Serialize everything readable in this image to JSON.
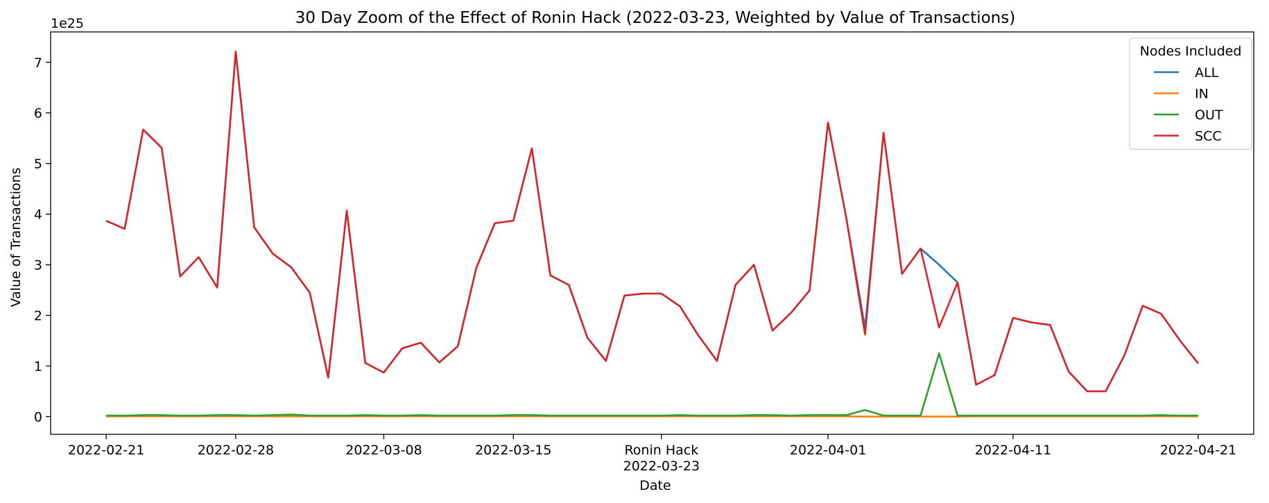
{
  "chart_data": {
    "type": "line",
    "title": "30 Day Zoom of the Effect of Ronin Hack (2022-03-23, Weighted by Value of Transactions)",
    "xlabel": "Date",
    "ylabel": "Value of Transactions",
    "y_offset_label": "1e25",
    "y_scale_exponent": 25,
    "xlim": [
      "2022-02-18",
      "2022-04-24"
    ],
    "ylim": [
      -0.35,
      7.6
    ],
    "y_ticks": [
      0,
      1,
      2,
      3,
      4,
      5,
      6,
      7
    ],
    "y_tick_labels": [
      "0",
      "1",
      "2",
      "3",
      "4",
      "5",
      "6",
      "7"
    ],
    "x_ticks": [
      {
        "date": "2022-02-21",
        "label": "2022-02-21"
      },
      {
        "date": "2022-02-28",
        "label": "2022-02-28"
      },
      {
        "date": "2022-03-08",
        "label": "2022-03-08"
      },
      {
        "date": "2022-03-15",
        "label": "2022-03-15"
      },
      {
        "date": "2022-03-23",
        "label": "2022-03-23",
        "annotation": "Ronin Hack"
      },
      {
        "date": "2022-04-01",
        "label": "2022-04-01"
      },
      {
        "date": "2022-04-11",
        "label": "2022-04-11"
      },
      {
        "date": "2022-04-21",
        "label": "2022-04-21"
      }
    ],
    "grid": false,
    "legend": {
      "title": "Nodes Included",
      "placement": "upper right"
    },
    "start_date": "2022-02-21",
    "dates_note": "one value per consecutive day from start_date to 2022-04-21",
    "series": [
      {
        "name": "ALL",
        "color": "#1f77b4",
        "values": [
          3.87,
          3.71,
          5.67,
          5.31,
          2.77,
          3.15,
          2.55,
          7.21,
          3.74,
          3.22,
          2.95,
          2.45,
          0.77,
          4.07,
          1.06,
          0.87,
          1.35,
          1.46,
          1.07,
          1.39,
          2.94,
          3.82,
          3.87,
          5.3,
          2.79,
          2.6,
          1.56,
          1.1,
          2.39,
          2.43,
          2.43,
          2.18,
          1.6,
          1.1,
          2.6,
          3.0,
          1.7,
          2.05,
          2.49,
          5.81,
          3.9,
          1.75,
          5.61,
          2.82,
          3.32,
          3.0,
          2.65,
          0.63,
          0.82,
          1.95,
          1.86,
          1.81,
          0.89,
          0.5,
          0.5,
          1.2,
          2.19,
          2.03,
          1.51,
          1.05
        ]
      },
      {
        "name": "IN",
        "color": "#ff7f0e",
        "values": [
          0.005,
          0.005,
          0.005,
          0.005,
          0.005,
          0.005,
          0.005,
          0.005,
          0.005,
          0.005,
          0.005,
          0.005,
          0.005,
          0.005,
          0.005,
          0.005,
          0.005,
          0.005,
          0.005,
          0.005,
          0.005,
          0.005,
          0.005,
          0.005,
          0.005,
          0.005,
          0.005,
          0.005,
          0.005,
          0.005,
          0.005,
          0.005,
          0.005,
          0.005,
          0.005,
          0.005,
          0.005,
          0.005,
          0.005,
          0.005,
          0.005,
          0.0,
          0.0,
          0.0,
          0.0,
          0.0,
          0.0,
          0.005,
          0.005,
          0.005,
          0.005,
          0.005,
          0.005,
          0.005,
          0.005,
          0.005,
          0.005,
          0.005,
          0.005,
          0.005
        ]
      },
      {
        "name": "OUT",
        "color": "#2ca02c",
        "values": [
          0.02,
          0.02,
          0.03,
          0.03,
          0.02,
          0.02,
          0.03,
          0.03,
          0.02,
          0.03,
          0.04,
          0.02,
          0.02,
          0.02,
          0.03,
          0.02,
          0.02,
          0.03,
          0.02,
          0.02,
          0.02,
          0.02,
          0.03,
          0.03,
          0.02,
          0.02,
          0.02,
          0.02,
          0.02,
          0.02,
          0.02,
          0.03,
          0.02,
          0.02,
          0.02,
          0.03,
          0.03,
          0.02,
          0.03,
          0.03,
          0.03,
          0.13,
          0.02,
          0.02,
          0.02,
          1.25,
          0.02,
          0.02,
          0.02,
          0.02,
          0.02,
          0.02,
          0.02,
          0.02,
          0.02,
          0.02,
          0.02,
          0.03,
          0.02,
          0.02
        ]
      },
      {
        "name": "SCC",
        "color": "#d62728",
        "values": [
          3.87,
          3.71,
          5.67,
          5.31,
          2.77,
          3.15,
          2.55,
          7.21,
          3.74,
          3.22,
          2.95,
          2.45,
          0.77,
          4.07,
          1.06,
          0.87,
          1.35,
          1.46,
          1.07,
          1.39,
          2.94,
          3.82,
          3.87,
          5.3,
          2.79,
          2.6,
          1.56,
          1.1,
          2.39,
          2.43,
          2.43,
          2.18,
          1.6,
          1.1,
          2.6,
          3.0,
          1.7,
          2.05,
          2.49,
          5.81,
          3.9,
          1.62,
          5.61,
          2.82,
          3.32,
          1.76,
          2.65,
          0.63,
          0.82,
          1.95,
          1.86,
          1.81,
          0.89,
          0.5,
          0.5,
          1.2,
          2.19,
          2.03,
          1.51,
          1.05
        ]
      }
    ]
  }
}
